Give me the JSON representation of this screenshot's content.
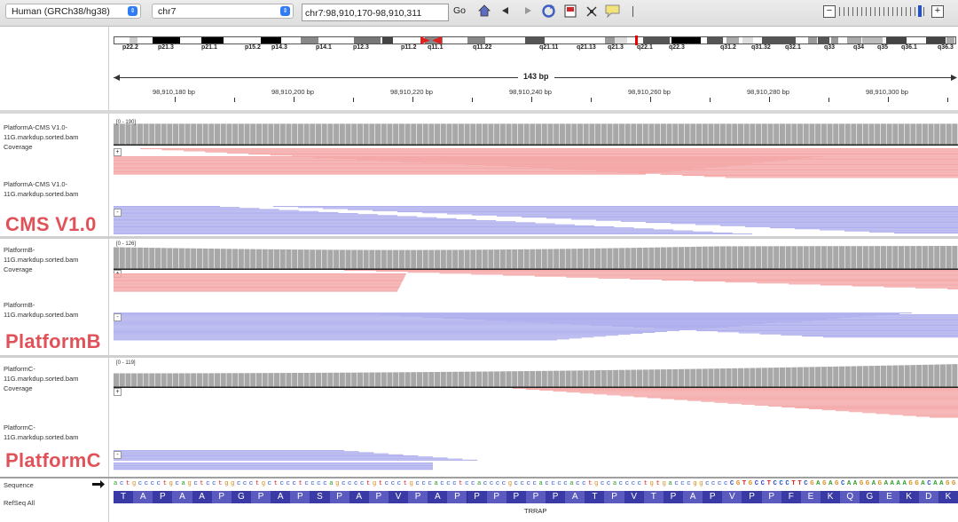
{
  "toolbar": {
    "genome": "Human (GRCh38/hg38)",
    "chromosome": "chr7",
    "locus": "chr7:98,910,170-98,910,311",
    "go_label": "Go"
  },
  "ideogram": {
    "band_labels": [
      "p22.2",
      "p21.3",
      "p21.1",
      "p15.2",
      "p14.3",
      "p14.1",
      "p12.3",
      "p11.2",
      "q11.1",
      "q11.22",
      "q21.11",
      "q21.13",
      "q21.3",
      "q22.1",
      "q22.3",
      "q31.2",
      "q31.32",
      "q32.1",
      "q33",
      "q34",
      "q35",
      "q36.1",
      "q36.3"
    ]
  },
  "ruler": {
    "span_label": "143 bp",
    "coordinates": [
      "98,910,180 bp",
      "98,910,200 bp",
      "98,910,220 bp",
      "98,910,240 bp",
      "98,910,260 bp",
      "98,910,280 bp",
      "98,910,300 bp"
    ]
  },
  "panels": {
    "a": {
      "coverage_name": "PlatformA-CMS V1.0-11G.markdup.sorted.bam Coverage",
      "coverage_range": "[0 - 190]",
      "alignment_name": "PlatformA-CMS V1.0-11G.markdup.sorted.bam",
      "big_label": "CMS V1.0"
    },
    "b": {
      "coverage_name": "PlatformB-11G.markdup.sorted.bam Coverage",
      "coverage_range": "[0 - 126]",
      "alignment_name": "PlatformB-11G.markdup.sorted.bam",
      "big_label": "PlatformB"
    },
    "c": {
      "coverage_name": "PlatformC-11G.markdup.sorted.bam Coverage",
      "coverage_range": "[0 - 119]",
      "alignment_name": "PlatformC-11G.markdup.sorted.bam",
      "big_label": "PlatformC"
    }
  },
  "bottom": {
    "sequence_label": "Sequence",
    "refseq_label": "RefSeq All",
    "sequence": "actgcccctgcagctcctggccctgctccctccccagcccctgtccctgcccaccctccaccccgccccaccccacctgccacccctgtgacccggccccCGTGCCTCCCTTCGAGAGCAAGGAGAAAAGGACAAGG",
    "amino_acids": [
      "T",
      "A",
      "P",
      "A",
      "A",
      "P",
      "G",
      "P",
      "A",
      "P",
      "S",
      "P",
      "A",
      "P",
      "V",
      "P",
      "A",
      "P",
      "P",
      "P",
      "P",
      "P",
      "P",
      "A",
      "T",
      "P",
      "V",
      "T",
      "P",
      "A",
      "P",
      "V",
      "P",
      "P",
      "F",
      "E",
      "K",
      "Q",
      "G",
      "E",
      "K",
      "D",
      "K"
    ],
    "gene": "TRRAP"
  }
}
